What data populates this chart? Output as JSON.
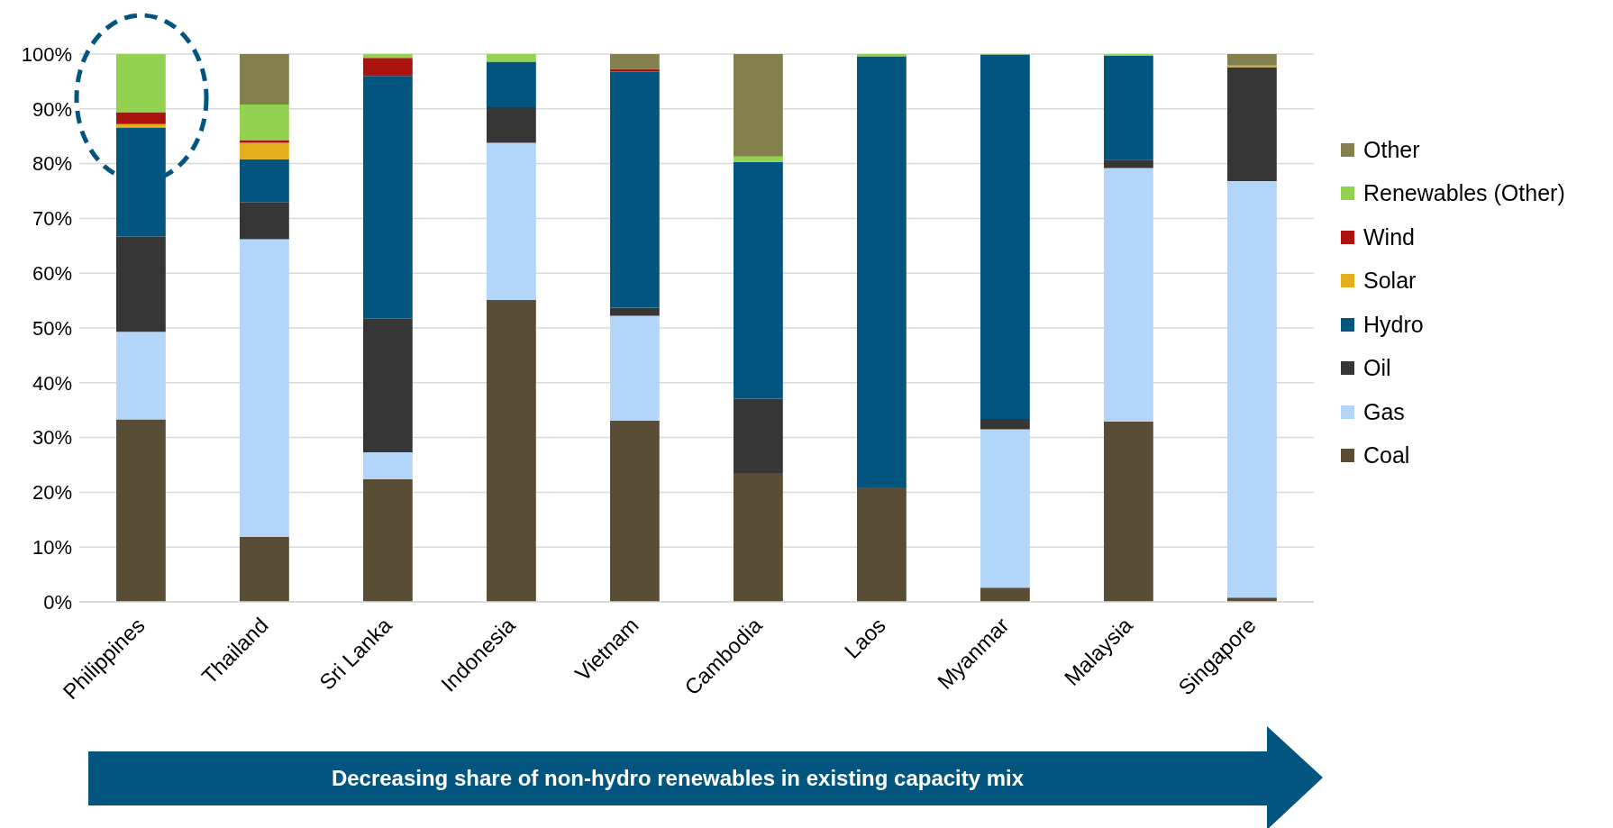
{
  "chart_data": {
    "type": "bar",
    "stacked": true,
    "categories": [
      "Philippines",
      "Thailand",
      "Sri Lanka",
      "Indonesia",
      "Vietnam",
      "Cambodia",
      "Laos",
      "Myanmar",
      "Malaysia",
      "Singapore"
    ],
    "series": [
      {
        "name": "Coal",
        "color": "#594d36",
        "values": [
          33.3,
          11.9,
          22.4,
          55.1,
          33.1,
          23.5,
          20.9,
          2.6,
          32.9,
          0.8
        ]
      },
      {
        "name": "Gas",
        "color": "#b3d5f9",
        "values": [
          16,
          54.3,
          4.9,
          28.7,
          19.1,
          0,
          0,
          28.9,
          46.3,
          76
        ]
      },
      {
        "name": "Oil",
        "color": "#363636",
        "values": [
          17.4,
          6.8,
          24.4,
          6.5,
          1.5,
          13.6,
          0,
          1.9,
          1.5,
          20.8
        ]
      },
      {
        "name": "Hydro",
        "color": "#02557f",
        "values": [
          19.9,
          7.8,
          44.3,
          8.3,
          43.1,
          43.2,
          78.7,
          66.5,
          19,
          0
        ]
      },
      {
        "name": "Solar",
        "color": "#e5ae1a",
        "values": [
          0.6,
          3,
          0,
          0,
          0,
          0,
          0,
          0,
          0,
          0.3
        ]
      },
      {
        "name": "Wind",
        "color": "#ab130e",
        "values": [
          2.2,
          0.5,
          3.3,
          0,
          0.5,
          0,
          0,
          0,
          0,
          0
        ]
      },
      {
        "name": "Renewables (Other)",
        "color": "#93d150",
        "values": [
          10.6,
          6.5,
          0.7,
          1.4,
          0,
          1,
          0.4,
          0.1,
          0.3,
          0
        ]
      },
      {
        "name": "Other",
        "color": "#83804e",
        "values": [
          0,
          9.2,
          0,
          0,
          2.7,
          18.7,
          0,
          0,
          0,
          2.1
        ]
      }
    ],
    "ylim": [
      0,
      100
    ],
    "yticks": [
      {
        "value": 0,
        "label": "0%"
      },
      {
        "value": 10,
        "label": "10%"
      },
      {
        "value": 20,
        "label": "20%"
      },
      {
        "value": 30,
        "label": "30%"
      },
      {
        "value": 40,
        "label": "40%"
      },
      {
        "value": 50,
        "label": "50%"
      },
      {
        "value": 60,
        "label": "60%"
      },
      {
        "value": 70,
        "label": "70%"
      },
      {
        "value": 80,
        "label": "80%"
      },
      {
        "value": 90,
        "label": "90%"
      },
      {
        "value": 100,
        "label": "100%"
      }
    ],
    "grid": "y",
    "legend": "right",
    "annotations": [
      "Decreasing share of non-hydro renewables in existing capacity mix"
    ]
  }
}
